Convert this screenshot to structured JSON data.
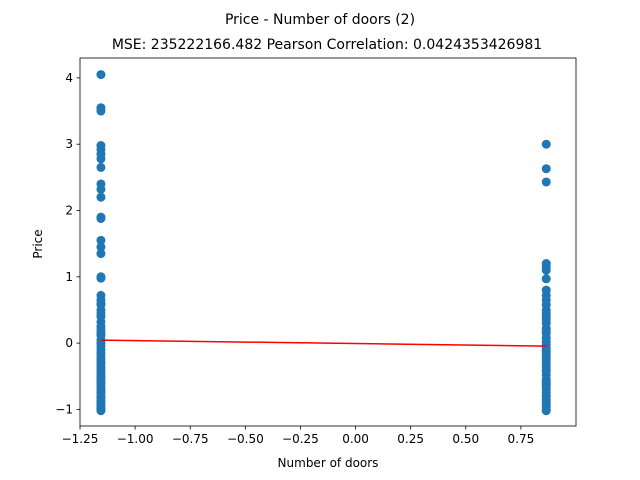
{
  "chart_data": {
    "type": "scatter",
    "title": "Price - Number of doors (2)",
    "subtitle": "MSE: 235222166.482 Pearson Correlation: 0.0424353426981",
    "xlabel": "Number of doors",
    "ylabel": "Price",
    "xlim": [
      -1.25,
      1.0
    ],
    "ylim": [
      -1.25,
      4.3
    ],
    "xticks": [
      -1.25,
      -1.0,
      -0.75,
      -0.5,
      -0.25,
      0.0,
      0.25,
      0.5,
      0.75
    ],
    "xtick_labels": [
      "−1.25",
      "−1.00",
      "−0.75",
      "−0.50",
      "−0.25",
      "0.00",
      "0.25",
      "0.50",
      "0.75"
    ],
    "yticks": [
      -1,
      0,
      1,
      2,
      3,
      4
    ],
    "ytick_labels": [
      "−1",
      "0",
      "1",
      "2",
      "3",
      "4"
    ],
    "grid": false,
    "series": [
      {
        "type": "scatter",
        "color": "#1f77b4",
        "x": [
          -1.155,
          -1.155,
          -1.155,
          -1.155,
          -1.155,
          -1.155,
          -1.155,
          -1.155,
          -1.155,
          -1.155,
          -1.155,
          -1.155,
          -1.155,
          -1.155,
          -1.155,
          -1.155,
          -1.155,
          -1.155,
          -1.155,
          -1.155,
          -1.155,
          -1.155,
          -1.155,
          -1.155,
          -1.155,
          -1.155,
          -1.155,
          -1.155,
          -1.155,
          -1.155,
          -1.155,
          -1.155,
          -1.155,
          -1.155,
          -1.155,
          -1.155,
          -1.155,
          -1.155,
          -1.155,
          -1.155,
          -1.155,
          -1.155,
          -1.155,
          -1.155,
          -1.155,
          -1.155,
          -1.155,
          -1.155,
          -1.155,
          -1.155,
          -1.155,
          -1.155,
          -1.155,
          -1.155,
          -1.155,
          -1.155,
          -1.155,
          -1.155,
          -1.155,
          -1.155,
          -1.155,
          0.865,
          0.865,
          0.865,
          0.865,
          0.865,
          0.865,
          0.865,
          0.865,
          0.865,
          0.865,
          0.865,
          0.865,
          0.865,
          0.865,
          0.865,
          0.865,
          0.865,
          0.865,
          0.865,
          0.865,
          0.865,
          0.865,
          0.865,
          0.865,
          0.865,
          0.865,
          0.865,
          0.865,
          0.865,
          0.865,
          0.865,
          0.865,
          0.865,
          0.865,
          0.865,
          0.865,
          0.865,
          0.865,
          0.865,
          0.865,
          0.865,
          0.865,
          0.865,
          0.865,
          0.865,
          0.865
        ],
        "y": [
          4.05,
          3.55,
          3.5,
          2.98,
          2.92,
          2.85,
          2.78,
          2.65,
          2.4,
          2.32,
          2.2,
          1.9,
          1.88,
          1.55,
          1.45,
          1.35,
          1.0,
          0.98,
          0.72,
          0.65,
          0.58,
          0.5,
          0.45,
          0.4,
          0.32,
          0.25,
          0.2,
          0.12,
          0.05,
          0.0,
          -0.05,
          -0.1,
          -0.15,
          -0.2,
          -0.25,
          -0.3,
          -0.35,
          -0.4,
          -0.45,
          -0.5,
          -0.55,
          -0.6,
          -0.65,
          -0.7,
          -0.72,
          -0.75,
          -0.8,
          -0.85,
          -0.88,
          -0.92,
          -0.95,
          -0.98,
          -1.0,
          -1.02,
          -0.6,
          -0.3,
          0.15,
          0.6,
          -0.5,
          -0.82,
          -0.4,
          3.0,
          2.63,
          2.43,
          1.2,
          1.15,
          1.1,
          0.97,
          0.8,
          0.72,
          0.65,
          0.58,
          0.5,
          0.45,
          0.4,
          0.35,
          0.3,
          0.22,
          0.15,
          0.08,
          0.02,
          -0.03,
          -0.08,
          -0.15,
          -0.2,
          -0.25,
          -0.3,
          -0.35,
          -0.42,
          -0.48,
          -0.55,
          -0.6,
          -0.65,
          -0.7,
          -0.75,
          -0.8,
          -0.85,
          -0.9,
          -0.93,
          -0.97,
          -1.0,
          -1.02,
          -0.12,
          0.18,
          -0.62,
          -0.4,
          -0.88
        ]
      },
      {
        "type": "line",
        "color": "#ff0000",
        "x": [
          -1.155,
          0.865
        ],
        "y": [
          0.045,
          -0.045
        ]
      }
    ]
  }
}
